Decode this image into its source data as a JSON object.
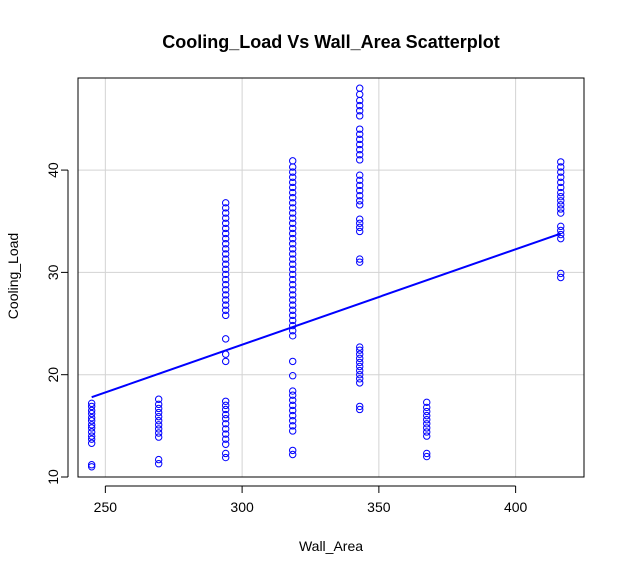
{
  "chart_data": {
    "type": "scatter",
    "title": "Cooling_Load Vs Wall_Area Scatterplot",
    "xlabel": "Wall_Area",
    "ylabel": "Cooling_Load",
    "xlim": [
      240,
      425
    ],
    "ylim": [
      10,
      49
    ],
    "x_ticks": [
      250,
      300,
      350,
      400
    ],
    "y_ticks": [
      10,
      20,
      30,
      40
    ],
    "grid": true,
    "point_color": "#0000ff",
    "line_color": "#0000ff",
    "series": [
      {
        "points": [
          {
            "x": 245,
            "y": 11.0
          },
          {
            "x": 245,
            "y": 11.2
          },
          {
            "x": 245,
            "y": 13.3
          },
          {
            "x": 245,
            "y": 13.7
          },
          {
            "x": 245,
            "y": 14.0
          },
          {
            "x": 245,
            "y": 14.4
          },
          {
            "x": 245,
            "y": 14.8
          },
          {
            "x": 245,
            "y": 15.1
          },
          {
            "x": 245,
            "y": 15.5
          },
          {
            "x": 245,
            "y": 15.8
          },
          {
            "x": 245,
            "y": 16.2
          },
          {
            "x": 245,
            "y": 16.5
          },
          {
            "x": 245,
            "y": 16.9
          },
          {
            "x": 245,
            "y": 17.2
          },
          {
            "x": 269.5,
            "y": 11.3
          },
          {
            "x": 269.5,
            "y": 11.7
          },
          {
            "x": 269.5,
            "y": 13.9
          },
          {
            "x": 269.5,
            "y": 14.3
          },
          {
            "x": 269.5,
            "y": 14.7
          },
          {
            "x": 269.5,
            "y": 15.1
          },
          {
            "x": 269.5,
            "y": 15.5
          },
          {
            "x": 269.5,
            "y": 15.9
          },
          {
            "x": 269.5,
            "y": 16.3
          },
          {
            "x": 269.5,
            "y": 16.7
          },
          {
            "x": 269.5,
            "y": 17.1
          },
          {
            "x": 269.5,
            "y": 17.6
          },
          {
            "x": 294,
            "y": 11.9
          },
          {
            "x": 294,
            "y": 12.3
          },
          {
            "x": 294,
            "y": 13.2
          },
          {
            "x": 294,
            "y": 13.7
          },
          {
            "x": 294,
            "y": 14.2
          },
          {
            "x": 294,
            "y": 14.7
          },
          {
            "x": 294,
            "y": 15.2
          },
          {
            "x": 294,
            "y": 15.7
          },
          {
            "x": 294,
            "y": 16.1
          },
          {
            "x": 294,
            "y": 16.6
          },
          {
            "x": 294,
            "y": 17.0
          },
          {
            "x": 294,
            "y": 17.4
          },
          {
            "x": 294,
            "y": 21.3
          },
          {
            "x": 294,
            "y": 22.0
          },
          {
            "x": 294,
            "y": 23.5
          },
          {
            "x": 294,
            "y": 25.8
          },
          {
            "x": 294,
            "y": 26.3
          },
          {
            "x": 294,
            "y": 26.8
          },
          {
            "x": 294,
            "y": 27.3
          },
          {
            "x": 294,
            "y": 27.8
          },
          {
            "x": 294,
            "y": 28.3
          },
          {
            "x": 294,
            "y": 28.8
          },
          {
            "x": 294,
            "y": 29.3
          },
          {
            "x": 294,
            "y": 29.8
          },
          {
            "x": 294,
            "y": 30.3
          },
          {
            "x": 294,
            "y": 30.8
          },
          {
            "x": 294,
            "y": 31.3
          },
          {
            "x": 294,
            "y": 31.8
          },
          {
            "x": 294,
            "y": 32.3
          },
          {
            "x": 294,
            "y": 32.8
          },
          {
            "x": 294,
            "y": 33.3
          },
          {
            "x": 294,
            "y": 33.8
          },
          {
            "x": 294,
            "y": 34.3
          },
          {
            "x": 294,
            "y": 34.8
          },
          {
            "x": 294,
            "y": 35.3
          },
          {
            "x": 294,
            "y": 35.8
          },
          {
            "x": 294,
            "y": 36.3
          },
          {
            "x": 294,
            "y": 36.8
          },
          {
            "x": 318.5,
            "y": 12.2
          },
          {
            "x": 318.5,
            "y": 12.6
          },
          {
            "x": 318.5,
            "y": 14.5
          },
          {
            "x": 318.5,
            "y": 15.0
          },
          {
            "x": 318.5,
            "y": 15.5
          },
          {
            "x": 318.5,
            "y": 16.0
          },
          {
            "x": 318.5,
            "y": 16.5
          },
          {
            "x": 318.5,
            "y": 17.0
          },
          {
            "x": 318.5,
            "y": 17.5
          },
          {
            "x": 318.5,
            "y": 18.0
          },
          {
            "x": 318.5,
            "y": 18.4
          },
          {
            "x": 318.5,
            "y": 19.9
          },
          {
            "x": 318.5,
            "y": 21.3
          },
          {
            "x": 318.5,
            "y": 23.8
          },
          {
            "x": 318.5,
            "y": 24.3
          },
          {
            "x": 318.5,
            "y": 24.8
          },
          {
            "x": 318.5,
            "y": 25.3
          },
          {
            "x": 318.5,
            "y": 25.8
          },
          {
            "x": 318.5,
            "y": 26.3
          },
          {
            "x": 318.5,
            "y": 26.8
          },
          {
            "x": 318.5,
            "y": 27.3
          },
          {
            "x": 318.5,
            "y": 27.8
          },
          {
            "x": 318.5,
            "y": 28.3
          },
          {
            "x": 318.5,
            "y": 28.8
          },
          {
            "x": 318.5,
            "y": 29.3
          },
          {
            "x": 318.5,
            "y": 29.8
          },
          {
            "x": 318.5,
            "y": 30.3
          },
          {
            "x": 318.5,
            "y": 30.8
          },
          {
            "x": 318.5,
            "y": 31.3
          },
          {
            "x": 318.5,
            "y": 31.8
          },
          {
            "x": 318.5,
            "y": 32.3
          },
          {
            "x": 318.5,
            "y": 32.8
          },
          {
            "x": 318.5,
            "y": 33.3
          },
          {
            "x": 318.5,
            "y": 33.8
          },
          {
            "x": 318.5,
            "y": 34.3
          },
          {
            "x": 318.5,
            "y": 34.8
          },
          {
            "x": 318.5,
            "y": 35.3
          },
          {
            "x": 318.5,
            "y": 35.8
          },
          {
            "x": 318.5,
            "y": 36.3
          },
          {
            "x": 318.5,
            "y": 36.8
          },
          {
            "x": 318.5,
            "y": 37.3
          },
          {
            "x": 318.5,
            "y": 37.8
          },
          {
            "x": 318.5,
            "y": 38.3
          },
          {
            "x": 318.5,
            "y": 38.8
          },
          {
            "x": 318.5,
            "y": 39.3
          },
          {
            "x": 318.5,
            "y": 39.8
          },
          {
            "x": 318.5,
            "y": 40.3
          },
          {
            "x": 318.5,
            "y": 40.9
          },
          {
            "x": 343,
            "y": 16.6
          },
          {
            "x": 343,
            "y": 16.9
          },
          {
            "x": 343,
            "y": 19.2
          },
          {
            "x": 343,
            "y": 19.6
          },
          {
            "x": 343,
            "y": 20.0
          },
          {
            "x": 343,
            "y": 20.4
          },
          {
            "x": 343,
            "y": 20.8
          },
          {
            "x": 343,
            "y": 21.2
          },
          {
            "x": 343,
            "y": 21.6
          },
          {
            "x": 343,
            "y": 22.0
          },
          {
            "x": 343,
            "y": 22.4
          },
          {
            "x": 343,
            "y": 22.7
          },
          {
            "x": 343,
            "y": 31.0
          },
          {
            "x": 343,
            "y": 31.3
          },
          {
            "x": 343,
            "y": 34.0
          },
          {
            "x": 343,
            "y": 34.4
          },
          {
            "x": 343,
            "y": 34.8
          },
          {
            "x": 343,
            "y": 35.2
          },
          {
            "x": 343,
            "y": 36.6
          },
          {
            "x": 343,
            "y": 37.0
          },
          {
            "x": 343,
            "y": 37.5
          },
          {
            "x": 343,
            "y": 38.0
          },
          {
            "x": 343,
            "y": 38.5
          },
          {
            "x": 343,
            "y": 39.0
          },
          {
            "x": 343,
            "y": 39.5
          },
          {
            "x": 343,
            "y": 41.0
          },
          {
            "x": 343,
            "y": 41.5
          },
          {
            "x": 343,
            "y": 42.0
          },
          {
            "x": 343,
            "y": 42.5
          },
          {
            "x": 343,
            "y": 43.0
          },
          {
            "x": 343,
            "y": 43.5
          },
          {
            "x": 343,
            "y": 44.0
          },
          {
            "x": 343,
            "y": 45.3
          },
          {
            "x": 343,
            "y": 45.8
          },
          {
            "x": 343,
            "y": 46.3
          },
          {
            "x": 343,
            "y": 46.8
          },
          {
            "x": 343,
            "y": 47.4
          },
          {
            "x": 343,
            "y": 48.0
          },
          {
            "x": 367.5,
            "y": 12.0
          },
          {
            "x": 367.5,
            "y": 12.3
          },
          {
            "x": 367.5,
            "y": 14.0
          },
          {
            "x": 367.5,
            "y": 14.4
          },
          {
            "x": 367.5,
            "y": 14.8
          },
          {
            "x": 367.5,
            "y": 15.2
          },
          {
            "x": 367.5,
            "y": 15.6
          },
          {
            "x": 367.5,
            "y": 16.0
          },
          {
            "x": 367.5,
            "y": 16.4
          },
          {
            "x": 367.5,
            "y": 16.8
          },
          {
            "x": 367.5,
            "y": 17.3
          },
          {
            "x": 416.5,
            "y": 29.5
          },
          {
            "x": 416.5,
            "y": 29.9
          },
          {
            "x": 416.5,
            "y": 33.3
          },
          {
            "x": 416.5,
            "y": 33.7
          },
          {
            "x": 416.5,
            "y": 34.1
          },
          {
            "x": 416.5,
            "y": 34.5
          },
          {
            "x": 416.5,
            "y": 35.8
          },
          {
            "x": 416.5,
            "y": 36.2
          },
          {
            "x": 416.5,
            "y": 36.6
          },
          {
            "x": 416.5,
            "y": 37.0
          },
          {
            "x": 416.5,
            "y": 37.4
          },
          {
            "x": 416.5,
            "y": 37.8
          },
          {
            "x": 416.5,
            "y": 38.3
          },
          {
            "x": 416.5,
            "y": 38.8
          },
          {
            "x": 416.5,
            "y": 39.3
          },
          {
            "x": 416.5,
            "y": 39.8
          },
          {
            "x": 416.5,
            "y": 40.3
          },
          {
            "x": 416.5,
            "y": 40.8
          }
        ]
      }
    ],
    "regression_line": [
      {
        "x": 245,
        "y": 17.8
      },
      {
        "x": 416.5,
        "y": 33.8
      }
    ]
  }
}
